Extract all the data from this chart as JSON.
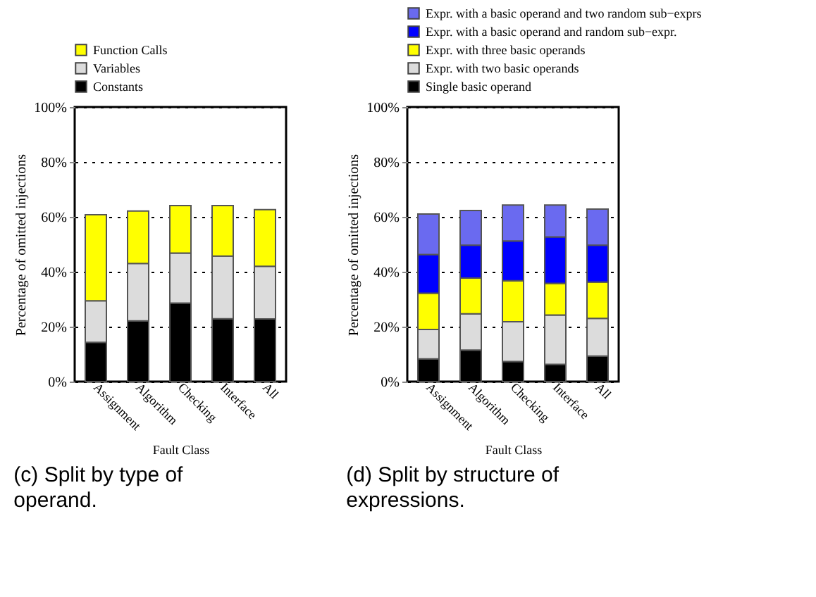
{
  "chart_data": [
    {
      "type": "bar",
      "stacked": true,
      "title": "(c) Split by type of operand.",
      "xlabel": "Fault Class",
      "ylabel": "Percentage of omitted injections",
      "categories": [
        "Assignment",
        "Algorithm",
        "Checking",
        "Interface",
        "All"
      ],
      "series": [
        {
          "name": "Constants",
          "color": "#000000",
          "values": [
            14.3,
            22.1,
            28.6,
            22.9,
            22.8
          ]
        },
        {
          "name": "Variables",
          "color": "#dcdcdc",
          "values": [
            15.1,
            20.9,
            18.2,
            22.8,
            19.2
          ]
        },
        {
          "name": "Function Calls",
          "color": "#ffff00",
          "values": [
            31.4,
            19.1,
            17.3,
            18.4,
            20.6
          ]
        }
      ],
      "ylim": [
        0,
        100
      ],
      "yticks": [
        {
          "value": 0,
          "label": "0%"
        },
        {
          "value": 20,
          "label": "20%"
        },
        {
          "value": 40,
          "label": "40%"
        },
        {
          "value": 60,
          "label": "60%"
        },
        {
          "value": 80,
          "label": "80%"
        },
        {
          "value": 100,
          "label": "100%"
        }
      ],
      "grid": "y",
      "legend": "top"
    },
    {
      "type": "bar",
      "stacked": true,
      "title": "(d) Split by structure of expressions.",
      "xlabel": "Fault Class",
      "ylabel": "Percentage of omitted injections",
      "categories": [
        "Assignment",
        "Algorithm",
        "Checking",
        "Interface",
        "All"
      ],
      "series": [
        {
          "name": "Single basic operand",
          "color": "#000000",
          "values": [
            8.3,
            11.5,
            7.3,
            6.3,
            9.3
          ]
        },
        {
          "name": "Expr. with two basic operands",
          "color": "#dcdcdc",
          "values": [
            10.7,
            13.2,
            14.5,
            17.9,
            13.7
          ]
        },
        {
          "name": "Expr. with three basic operands",
          "color": "#ffff00",
          "values": [
            13.2,
            13.0,
            14.9,
            11.6,
            13.2
          ]
        },
        {
          "name": "Expr. with a basic operand and random sub−expr.",
          "color": "#0000ff",
          "values": [
            14.1,
            12.0,
            14.5,
            16.9,
            13.5
          ]
        },
        {
          "name": "Expr. with a basic operand and two random sub−exprs",
          "color": "#6a6af0",
          "values": [
            14.7,
            12.6,
            13.1,
            11.6,
            13.1
          ]
        }
      ],
      "ylim": [
        0,
        100
      ],
      "yticks": [
        {
          "value": 0,
          "label": "0%"
        },
        {
          "value": 20,
          "label": "20%"
        },
        {
          "value": 40,
          "label": "40%"
        },
        {
          "value": 60,
          "label": "60%"
        },
        {
          "value": 80,
          "label": "80%"
        },
        {
          "value": 100,
          "label": "100%"
        }
      ],
      "grid": "y",
      "legend": "top"
    }
  ]
}
